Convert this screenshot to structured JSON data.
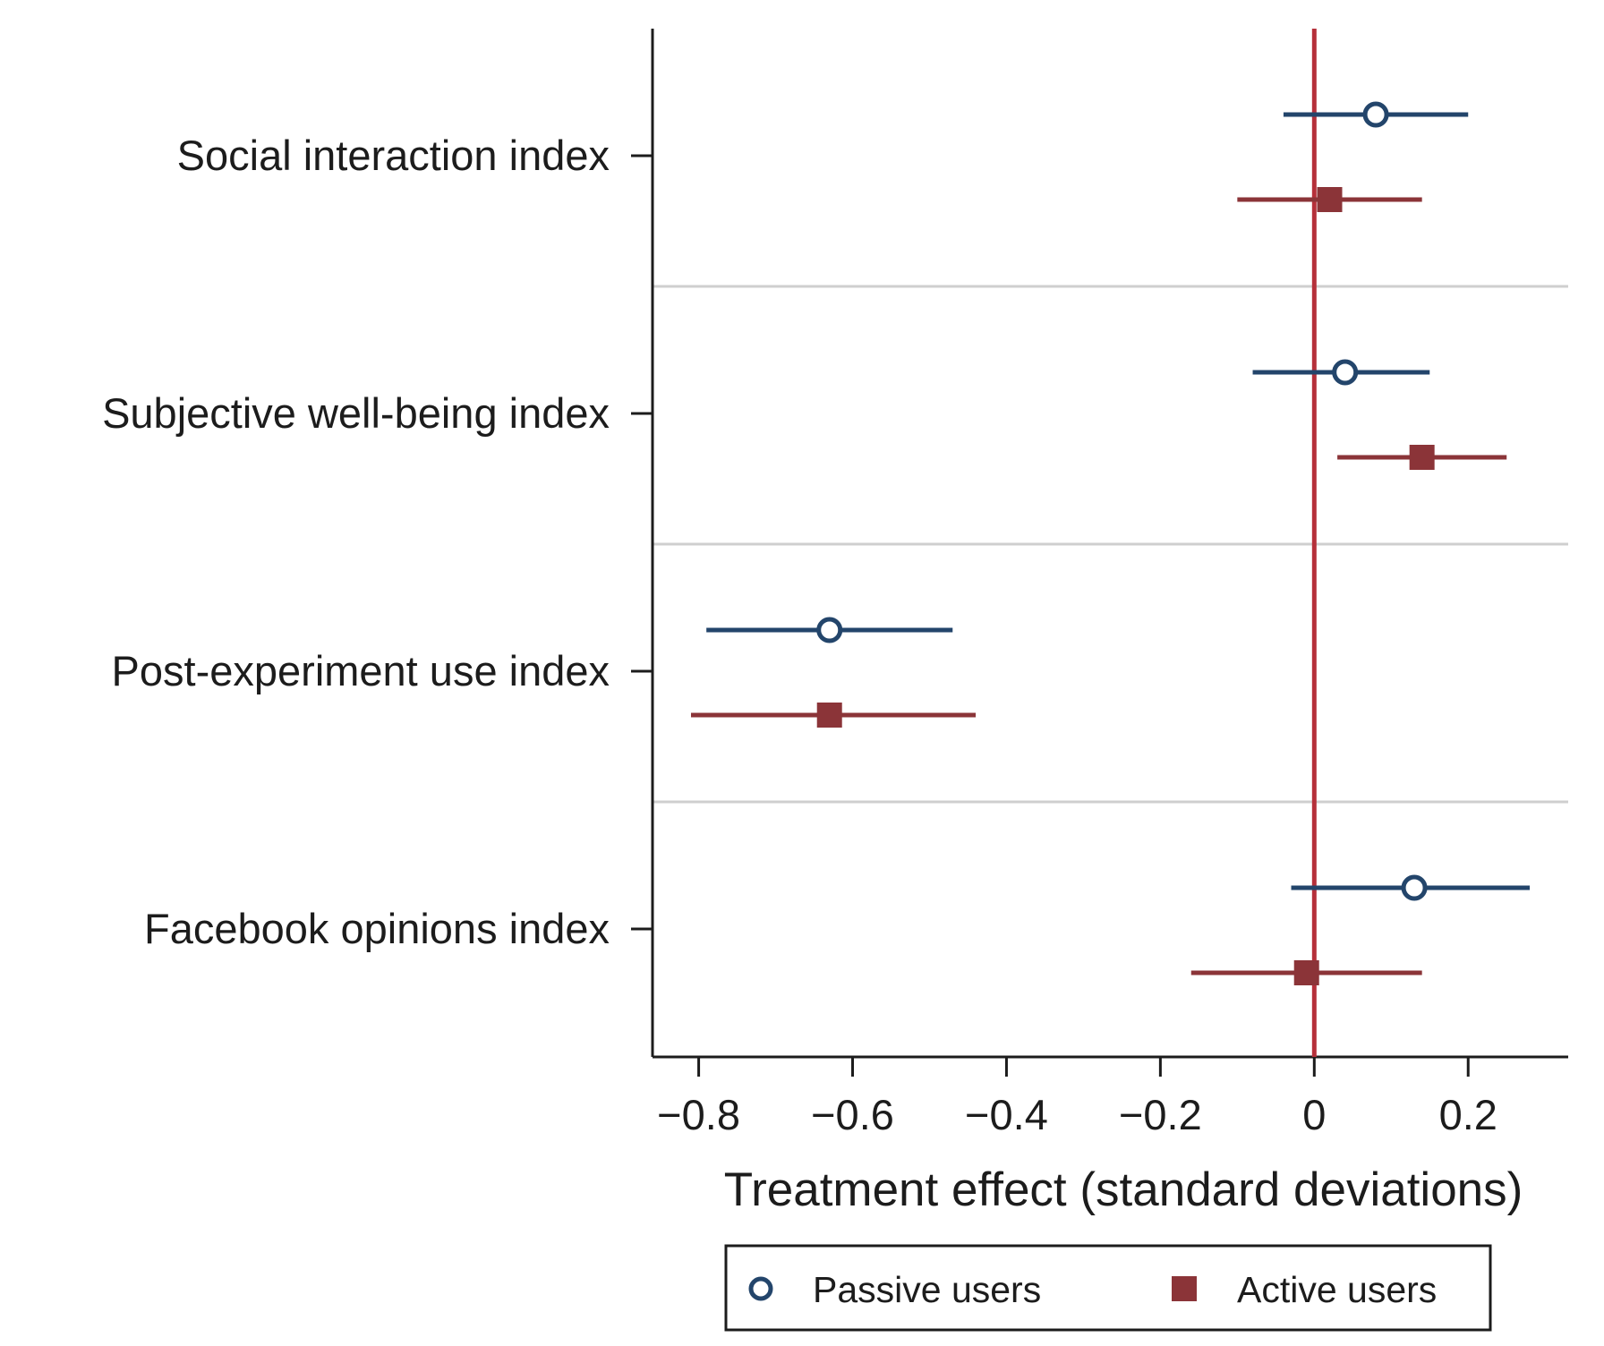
{
  "chart_data": {
    "type": "scatter",
    "subtype": "coefficient-plot",
    "title": "",
    "xlabel": "Treatment effect (standard deviations)",
    "ylabel": "",
    "xlim": [
      -0.86,
      0.33
    ],
    "x_ticks": [
      {
        "value": -0.8,
        "label": "−0.8"
      },
      {
        "value": -0.6,
        "label": "−0.6"
      },
      {
        "value": -0.4,
        "label": "−0.4"
      },
      {
        "value": -0.2,
        "label": "−0.2"
      },
      {
        "value": 0,
        "label": "0"
      },
      {
        "value": 0.2,
        "label": "0.2"
      }
    ],
    "categories": [
      "Social interaction index",
      "Subjective well-being index",
      "Post-experiment use index",
      "Facebook opinions index"
    ],
    "reference_line": {
      "x": 0,
      "color": "#b5303a"
    },
    "grid": "horizontal separators between categories",
    "legend_position": "bottom",
    "series": [
      {
        "name": "Passive users",
        "marker": "hollow-circle",
        "color": "#23456b",
        "points": [
          {
            "category": "Social interaction index",
            "estimate": 0.08,
            "ci_low": -0.04,
            "ci_high": 0.2
          },
          {
            "category": "Subjective well-being index",
            "estimate": 0.04,
            "ci_low": -0.08,
            "ci_high": 0.15
          },
          {
            "category": "Post-experiment use index",
            "estimate": -0.63,
            "ci_low": -0.79,
            "ci_high": -0.47
          },
          {
            "category": "Facebook opinions index",
            "estimate": 0.13,
            "ci_low": -0.03,
            "ci_high": 0.28
          }
        ]
      },
      {
        "name": "Active users",
        "marker": "filled-square",
        "color": "#8b3438",
        "points": [
          {
            "category": "Social interaction index",
            "estimate": 0.02,
            "ci_low": -0.1,
            "ci_high": 0.14
          },
          {
            "category": "Subjective well-being index",
            "estimate": 0.14,
            "ci_low": 0.03,
            "ci_high": 0.25
          },
          {
            "category": "Post-experiment use index",
            "estimate": -0.63,
            "ci_low": -0.81,
            "ci_high": -0.44
          },
          {
            "category": "Facebook opinions index",
            "estimate": -0.01,
            "ci_low": -0.16,
            "ci_high": 0.14
          }
        ]
      }
    ]
  }
}
